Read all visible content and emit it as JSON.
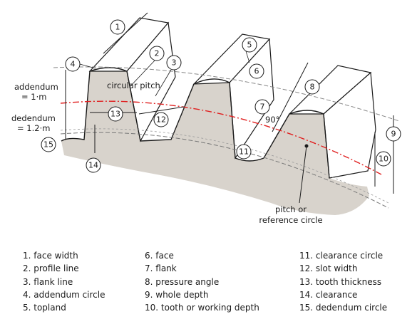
{
  "labels": {
    "addendum_1": "addendum",
    "addendum_2": "= 1·m",
    "dedendum_1": "dedendum",
    "dedendum_2": "= 1.2·m",
    "circular_pitch": "circular pitch",
    "angle": "90°",
    "pitch_1": "pitch or",
    "pitch_2": "reference circle"
  },
  "callout_numbers": [
    "1",
    "2",
    "3",
    "4",
    "5",
    "6",
    "7",
    "8",
    "9",
    "10",
    "11",
    "12",
    "13",
    "14",
    "15"
  ],
  "legend": {
    "col1": [
      "1. face width",
      "2. profile line",
      "3. flank line",
      "4. addendum circle",
      "5. topland"
    ],
    "col2": [
      "6. face",
      "7. flank",
      "8. pressure angle",
      "9. whole depth",
      "10. tooth or working depth"
    ],
    "col3": [
      "11. clearance circle",
      "12. slot width",
      "13. tooth thickness",
      "14. clearance",
      "15. dedendum circle"
    ]
  },
  "colors": {
    "gear_fill": "#d8d3cc",
    "face_fill": "#ffffff",
    "outline": "#1a1a1a",
    "pitch_line": "#e02020",
    "dash": "#777777"
  }
}
